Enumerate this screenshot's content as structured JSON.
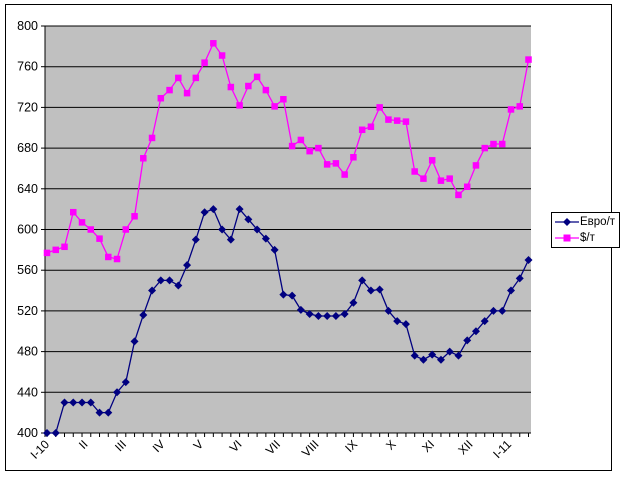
{
  "chart_data": {
    "type": "line",
    "title": "",
    "xlabel": "",
    "ylabel": "",
    "x_labels": [
      "I-10",
      "II",
      "III",
      "IV",
      "V",
      "VI",
      "VII",
      "VIII",
      "IX",
      "X",
      "XI",
      "XII",
      "I-11"
    ],
    "y_axis": {
      "min": 400,
      "max": 800,
      "step": 40
    },
    "grid": true,
    "legend_position": "right",
    "plot_bg_color": "#C0C0C0",
    "gridline_color": "#000000",
    "series": [
      {
        "name": "Евро/т",
        "color": "#000080",
        "marker": "diamond",
        "values": [
          400,
          400,
          430,
          430,
          430,
          430,
          420,
          420,
          440,
          450,
          490,
          516,
          540,
          550,
          550,
          545,
          565,
          590,
          617,
          620,
          600,
          590,
          620,
          610,
          600,
          591,
          580,
          536,
          535,
          521,
          517,
          515,
          515,
          515,
          517,
          528,
          550,
          540,
          541,
          520,
          510,
          507,
          476,
          472,
          477,
          472,
          480,
          476,
          491,
          500,
          510,
          520,
          520,
          540,
          552,
          570
        ]
      },
      {
        "name": "$/т",
        "color": "#FF00FF",
        "marker": "square",
        "values": [
          577,
          580,
          583,
          617,
          607,
          600,
          591,
          573,
          571,
          600,
          613,
          670,
          690,
          729,
          737,
          749,
          734,
          749,
          764,
          783,
          771,
          740,
          722,
          741,
          750,
          737,
          721,
          728,
          682,
          688,
          677,
          680,
          664,
          665,
          654,
          671,
          698,
          701,
          720,
          708,
          707,
          706,
          657,
          650,
          668,
          648,
          650,
          634,
          642,
          663,
          680,
          684,
          684,
          718,
          721,
          767
        ]
      }
    ]
  }
}
